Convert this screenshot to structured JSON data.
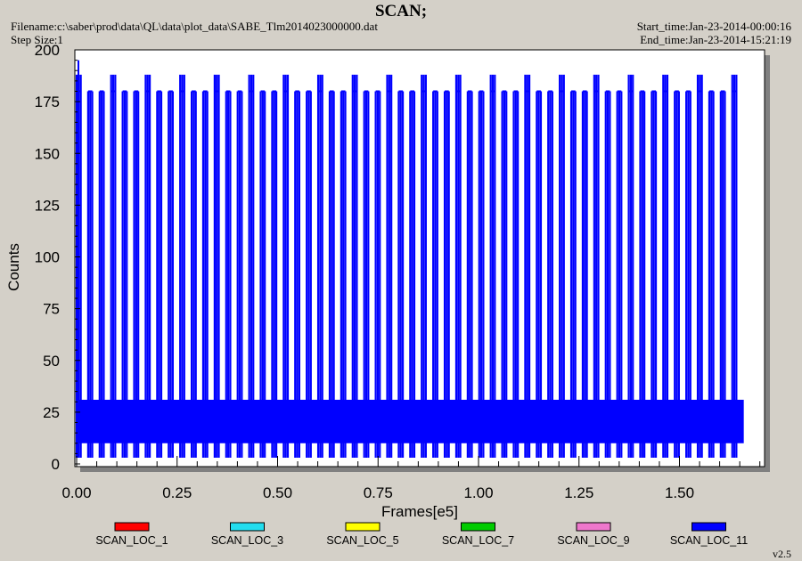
{
  "header": {
    "title": "SCAN;",
    "filename": "Filename:c:\\saber\\prod\\data\\QL\\data\\plot_data\\SABE_Tlm2014023000000.dat",
    "step_size": "Step Size:1",
    "start_time": "Start_time:Jan-23-2014-00:00:16",
    "end_time": "End_time:Jan-23-2014-15:21:19"
  },
  "version": "v2.5",
  "colors": {
    "background": "#d4d0c8",
    "plot_background": "#ffffff",
    "primary_series": "#0000ff"
  },
  "chart_data": {
    "type": "line",
    "title": "SCAN;",
    "xlabel": "Frames[e5]",
    "ylabel": "Counts",
    "xlim": [
      0,
      1.75
    ],
    "ylim": [
      0,
      200
    ],
    "x_ticks": [
      "0.00",
      "0.25",
      "0.50",
      "0.75",
      "1.00",
      "1.25",
      "1.50"
    ],
    "y_ticks": [
      "0",
      "25",
      "50",
      "75",
      "100",
      "125",
      "150",
      "175",
      "200"
    ],
    "grid": false,
    "legend_position": "bottom",
    "series": [
      {
        "name": "SCAN_LOC_1",
        "color": "#ff0000",
        "values": []
      },
      {
        "name": "SCAN_LOC_3",
        "color": "#22ddee",
        "values": []
      },
      {
        "name": "SCAN_LOC_5",
        "color": "#ffff00",
        "values": []
      },
      {
        "name": "SCAN_LOC_7",
        "color": "#00cc00",
        "values": []
      },
      {
        "name": "SCAN_LOC_9",
        "color": "#ee77cc",
        "values": []
      },
      {
        "name": "SCAN_LOC_11",
        "color": "#0000ff",
        "x_range": [
          0.0,
          1.66
        ],
        "baseline_band": [
          10,
          31
        ],
        "scan_low": 3,
        "scan_peak": 180,
        "scan_peak_high": 188,
        "scan_count": 58
      }
    ]
  }
}
